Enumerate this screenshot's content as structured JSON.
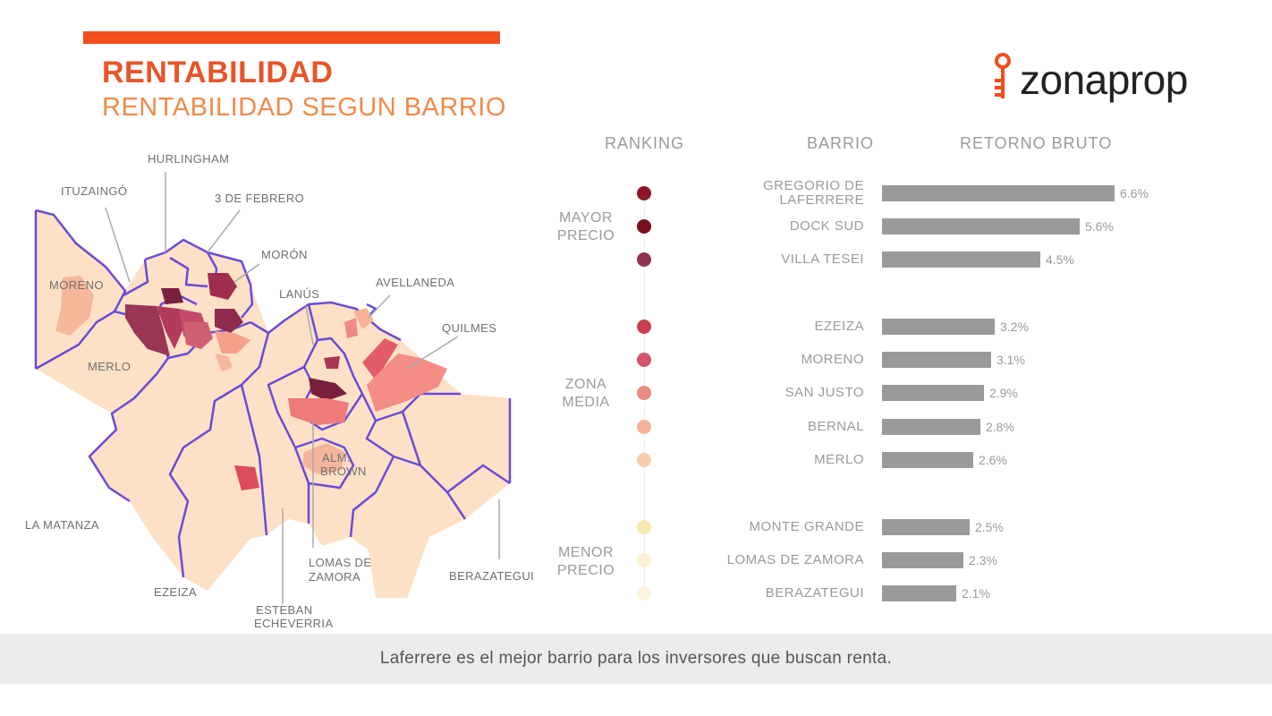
{
  "header": {
    "title": "RENTABILIDAD",
    "subtitle": "RENTABILIDAD SEGUN BARRIO",
    "logo_text": "zonaprop"
  },
  "colors": {
    "accent": "#f04e1a",
    "title": "#e8542a",
    "subtitle": "#f08a4b",
    "bar": "#9a9a9a"
  },
  "map": {
    "labels": {
      "ituzaingo": "ITUZAINGÓ",
      "hurlingham": "HURLINGHAM",
      "tres_de_febrero": "3 DE FEBRERO",
      "moron": "MORÓN",
      "moreno": "MORENO",
      "lanus": "LANÚS",
      "avellaneda": "AVELLANEDA",
      "quilmes": "QUILMES",
      "merlo": "MERLO",
      "alm_brown_1": "ALM.",
      "alm_brown_2": "BROWN",
      "la_matanza": "LA MATANZA",
      "ezeiza": "EZEIZA",
      "lomas_1": "LOMAS DE",
      "lomas_2": "ZAMORA",
      "berazategui": "BERAZATEGUI",
      "esteban_1": "ESTEBAN",
      "esteban_2": "ECHEVERRIA"
    }
  },
  "table": {
    "col_ranking": "RANKING",
    "col_barrio": "BARRIO",
    "col_retorno": "RETORNO BRUTO",
    "groups": {
      "mayor_1": "MAYOR",
      "mayor_2": "PRECIO",
      "media_1": "ZONA",
      "media_2": "MEDIA",
      "menor_1": "MENOR",
      "menor_2": "PRECIO"
    }
  },
  "chart_data": {
    "type": "bar",
    "title": "RENTABILIDAD SEGUN BARRIO",
    "xlabel": "RETORNO BRUTO",
    "categories": [
      "GREGORIO DE LAFERRERE",
      "DOCK SUD",
      "VILLA TESEI",
      "EZEIZA",
      "MORENO",
      "SAN JUSTO",
      "BERNAL",
      "MERLO",
      "MONTE GRANDE",
      "LOMAS DE ZAMORA",
      "BERAZATEGUI"
    ],
    "category_lines": [
      [
        "GREGORIO DE",
        "LAFERRERE"
      ],
      [
        "DOCK SUD"
      ],
      [
        "VILLA TESEI"
      ],
      [
        "EZEIZA"
      ],
      [
        "MORENO"
      ],
      [
        "SAN JUSTO"
      ],
      [
        "BERNAL"
      ],
      [
        "MERLO"
      ],
      [
        "MONTE GRANDE"
      ],
      [
        "LOMAS DE ZAMORA"
      ],
      [
        "BERAZATEGUI"
      ]
    ],
    "values": [
      6.6,
      5.6,
      4.5,
      3.2,
      3.1,
      2.9,
      2.8,
      2.6,
      2.5,
      2.3,
      2.1
    ],
    "value_labels": [
      "6.6%",
      "5.6%",
      "4.5%",
      "3.2%",
      "3.1%",
      "2.9%",
      "2.8%",
      "2.6%",
      "2.5%",
      "2.3%",
      "2.1%"
    ],
    "dot_colors": [
      "#8e1628",
      "#7a0f1f",
      "#94304f",
      "#c8404f",
      "#d4546a",
      "#ec8a84",
      "#f4b49a",
      "#f6cfaa",
      "#fbe9b5",
      "#fbf0d0",
      "#fcf4dc"
    ],
    "xlim": [
      0,
      6.6
    ]
  },
  "footer": {
    "text": "Laferrere es el mejor barrio para los inversores que buscan renta."
  }
}
